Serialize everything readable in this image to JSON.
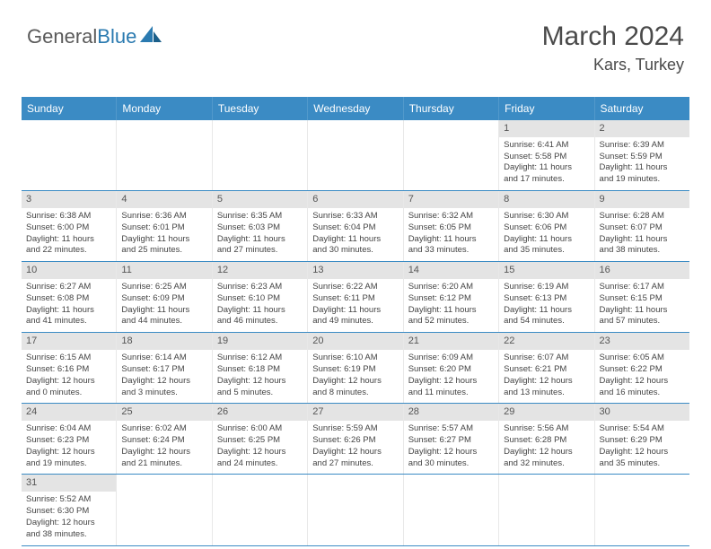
{
  "logo": {
    "text_general": "General",
    "text_blue": "Blue"
  },
  "header": {
    "month_title": "March 2024",
    "location": "Kars, Turkey"
  },
  "colors": {
    "header_bg": "#3b8bc4",
    "header_text": "#ffffff",
    "daynum_bg": "#e4e4e4",
    "body_text": "#444444",
    "title_text": "#4a4a4a",
    "row_divider": "#3b8bc4"
  },
  "weekdays": [
    "Sunday",
    "Monday",
    "Tuesday",
    "Wednesday",
    "Thursday",
    "Friday",
    "Saturday"
  ],
  "weeks": [
    [
      {},
      {},
      {},
      {},
      {},
      {
        "num": "1",
        "sunrise": "Sunrise: 6:41 AM",
        "sunset": "Sunset: 5:58 PM",
        "daylight1": "Daylight: 11 hours",
        "daylight2": "and 17 minutes."
      },
      {
        "num": "2",
        "sunrise": "Sunrise: 6:39 AM",
        "sunset": "Sunset: 5:59 PM",
        "daylight1": "Daylight: 11 hours",
        "daylight2": "and 19 minutes."
      }
    ],
    [
      {
        "num": "3",
        "sunrise": "Sunrise: 6:38 AM",
        "sunset": "Sunset: 6:00 PM",
        "daylight1": "Daylight: 11 hours",
        "daylight2": "and 22 minutes."
      },
      {
        "num": "4",
        "sunrise": "Sunrise: 6:36 AM",
        "sunset": "Sunset: 6:01 PM",
        "daylight1": "Daylight: 11 hours",
        "daylight2": "and 25 minutes."
      },
      {
        "num": "5",
        "sunrise": "Sunrise: 6:35 AM",
        "sunset": "Sunset: 6:03 PM",
        "daylight1": "Daylight: 11 hours",
        "daylight2": "and 27 minutes."
      },
      {
        "num": "6",
        "sunrise": "Sunrise: 6:33 AM",
        "sunset": "Sunset: 6:04 PM",
        "daylight1": "Daylight: 11 hours",
        "daylight2": "and 30 minutes."
      },
      {
        "num": "7",
        "sunrise": "Sunrise: 6:32 AM",
        "sunset": "Sunset: 6:05 PM",
        "daylight1": "Daylight: 11 hours",
        "daylight2": "and 33 minutes."
      },
      {
        "num": "8",
        "sunrise": "Sunrise: 6:30 AM",
        "sunset": "Sunset: 6:06 PM",
        "daylight1": "Daylight: 11 hours",
        "daylight2": "and 35 minutes."
      },
      {
        "num": "9",
        "sunrise": "Sunrise: 6:28 AM",
        "sunset": "Sunset: 6:07 PM",
        "daylight1": "Daylight: 11 hours",
        "daylight2": "and 38 minutes."
      }
    ],
    [
      {
        "num": "10",
        "sunrise": "Sunrise: 6:27 AM",
        "sunset": "Sunset: 6:08 PM",
        "daylight1": "Daylight: 11 hours",
        "daylight2": "and 41 minutes."
      },
      {
        "num": "11",
        "sunrise": "Sunrise: 6:25 AM",
        "sunset": "Sunset: 6:09 PM",
        "daylight1": "Daylight: 11 hours",
        "daylight2": "and 44 minutes."
      },
      {
        "num": "12",
        "sunrise": "Sunrise: 6:23 AM",
        "sunset": "Sunset: 6:10 PM",
        "daylight1": "Daylight: 11 hours",
        "daylight2": "and 46 minutes."
      },
      {
        "num": "13",
        "sunrise": "Sunrise: 6:22 AM",
        "sunset": "Sunset: 6:11 PM",
        "daylight1": "Daylight: 11 hours",
        "daylight2": "and 49 minutes."
      },
      {
        "num": "14",
        "sunrise": "Sunrise: 6:20 AM",
        "sunset": "Sunset: 6:12 PM",
        "daylight1": "Daylight: 11 hours",
        "daylight2": "and 52 minutes."
      },
      {
        "num": "15",
        "sunrise": "Sunrise: 6:19 AM",
        "sunset": "Sunset: 6:13 PM",
        "daylight1": "Daylight: 11 hours",
        "daylight2": "and 54 minutes."
      },
      {
        "num": "16",
        "sunrise": "Sunrise: 6:17 AM",
        "sunset": "Sunset: 6:15 PM",
        "daylight1": "Daylight: 11 hours",
        "daylight2": "and 57 minutes."
      }
    ],
    [
      {
        "num": "17",
        "sunrise": "Sunrise: 6:15 AM",
        "sunset": "Sunset: 6:16 PM",
        "daylight1": "Daylight: 12 hours",
        "daylight2": "and 0 minutes."
      },
      {
        "num": "18",
        "sunrise": "Sunrise: 6:14 AM",
        "sunset": "Sunset: 6:17 PM",
        "daylight1": "Daylight: 12 hours",
        "daylight2": "and 3 minutes."
      },
      {
        "num": "19",
        "sunrise": "Sunrise: 6:12 AM",
        "sunset": "Sunset: 6:18 PM",
        "daylight1": "Daylight: 12 hours",
        "daylight2": "and 5 minutes."
      },
      {
        "num": "20",
        "sunrise": "Sunrise: 6:10 AM",
        "sunset": "Sunset: 6:19 PM",
        "daylight1": "Daylight: 12 hours",
        "daylight2": "and 8 minutes."
      },
      {
        "num": "21",
        "sunrise": "Sunrise: 6:09 AM",
        "sunset": "Sunset: 6:20 PM",
        "daylight1": "Daylight: 12 hours",
        "daylight2": "and 11 minutes."
      },
      {
        "num": "22",
        "sunrise": "Sunrise: 6:07 AM",
        "sunset": "Sunset: 6:21 PM",
        "daylight1": "Daylight: 12 hours",
        "daylight2": "and 13 minutes."
      },
      {
        "num": "23",
        "sunrise": "Sunrise: 6:05 AM",
        "sunset": "Sunset: 6:22 PM",
        "daylight1": "Daylight: 12 hours",
        "daylight2": "and 16 minutes."
      }
    ],
    [
      {
        "num": "24",
        "sunrise": "Sunrise: 6:04 AM",
        "sunset": "Sunset: 6:23 PM",
        "daylight1": "Daylight: 12 hours",
        "daylight2": "and 19 minutes."
      },
      {
        "num": "25",
        "sunrise": "Sunrise: 6:02 AM",
        "sunset": "Sunset: 6:24 PM",
        "daylight1": "Daylight: 12 hours",
        "daylight2": "and 21 minutes."
      },
      {
        "num": "26",
        "sunrise": "Sunrise: 6:00 AM",
        "sunset": "Sunset: 6:25 PM",
        "daylight1": "Daylight: 12 hours",
        "daylight2": "and 24 minutes."
      },
      {
        "num": "27",
        "sunrise": "Sunrise: 5:59 AM",
        "sunset": "Sunset: 6:26 PM",
        "daylight1": "Daylight: 12 hours",
        "daylight2": "and 27 minutes."
      },
      {
        "num": "28",
        "sunrise": "Sunrise: 5:57 AM",
        "sunset": "Sunset: 6:27 PM",
        "daylight1": "Daylight: 12 hours",
        "daylight2": "and 30 minutes."
      },
      {
        "num": "29",
        "sunrise": "Sunrise: 5:56 AM",
        "sunset": "Sunset: 6:28 PM",
        "daylight1": "Daylight: 12 hours",
        "daylight2": "and 32 minutes."
      },
      {
        "num": "30",
        "sunrise": "Sunrise: 5:54 AM",
        "sunset": "Sunset: 6:29 PM",
        "daylight1": "Daylight: 12 hours",
        "daylight2": "and 35 minutes."
      }
    ],
    [
      {
        "num": "31",
        "sunrise": "Sunrise: 5:52 AM",
        "sunset": "Sunset: 6:30 PM",
        "daylight1": "Daylight: 12 hours",
        "daylight2": "and 38 minutes."
      },
      {},
      {},
      {},
      {},
      {},
      {}
    ]
  ]
}
